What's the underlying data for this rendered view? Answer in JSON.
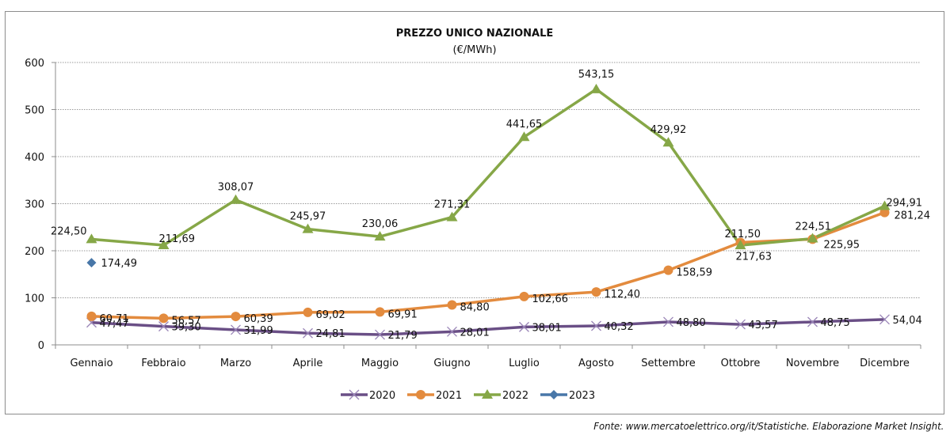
{
  "chart_data": {
    "type": "line",
    "title": "PREZZO UNICO NAZIONALE",
    "subtitle": "(€/MWh)",
    "xlabel": "",
    "ylabel": "",
    "ylim": [
      0,
      600
    ],
    "yticks": [
      0,
      100,
      200,
      300,
      400,
      500,
      600
    ],
    "grid": true,
    "legend": "bottom",
    "categories": [
      "Gennaio",
      "Febbraio",
      "Marzo",
      "Aprile",
      "Maggio",
      "Giugno",
      "Luglio",
      "Agosto",
      "Settembre",
      "Ottobre",
      "Novembre",
      "Dicembre"
    ],
    "series": [
      {
        "name": "2020",
        "color": "#6a4f86",
        "marker": "x",
        "values": [
          47.47,
          39.3,
          31.99,
          24.81,
          21.79,
          28.01,
          38.01,
          40.32,
          48.8,
          43.57,
          48.75,
          54.04
        ],
        "labels": [
          "47,47",
          "39,30",
          "31,99",
          "24,81",
          "21,79",
          "28,01",
          "38,01",
          "40,32",
          "48,80",
          "43,57",
          "48,75",
          "54,04"
        ]
      },
      {
        "name": "2021",
        "color": "#e38b3e",
        "marker": "circle",
        "values": [
          60.71,
          56.57,
          60.39,
          69.02,
          69.91,
          84.8,
          102.66,
          112.4,
          158.59,
          217.63,
          224.51,
          281.24
        ],
        "labels": [
          "60,71",
          "56,57",
          "60,39",
          "69,02",
          "69,91",
          "84,80",
          "102,66",
          "112,40",
          "158,59",
          "217,63",
          "224,51",
          "281,24"
        ]
      },
      {
        "name": "2022",
        "color": "#86a747",
        "marker": "triangle",
        "values": [
          224.5,
          211.69,
          308.07,
          245.97,
          230.06,
          271.31,
          441.65,
          543.15,
          429.92,
          211.5,
          225.95,
          294.91
        ],
        "labels": [
          "224,50",
          "211,69",
          "308,07",
          "245,97",
          "230,06",
          "271,31",
          "441,65",
          "543,15",
          "429,92",
          "211,50",
          "225,95",
          "294,91"
        ]
      },
      {
        "name": "2023",
        "color": "#4877a8",
        "marker": "diamond",
        "values": [
          174.49,
          null,
          null,
          null,
          null,
          null,
          null,
          null,
          null,
          null,
          null,
          null
        ],
        "labels": [
          "174,49",
          "",
          "",
          "",
          "",
          "",
          "",
          "",
          "",
          "",
          "",
          ""
        ]
      }
    ]
  },
  "source": "Fonte: www.mercatoelettrico.org/it/Statistiche. Elaborazione Market Insight."
}
